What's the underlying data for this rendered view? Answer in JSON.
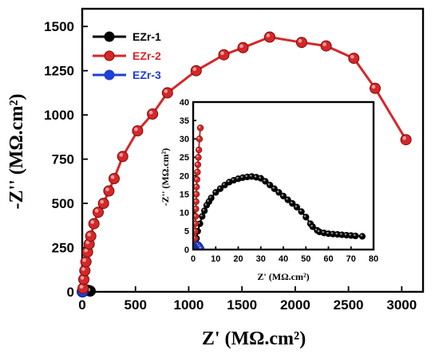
{
  "chart_data": [
    {
      "panel": "main",
      "type": "scatter",
      "xlabel": "Z' (MΩ.cm²)",
      "ylabel": "-Z'' (MΩ.cm²)",
      "xlim": [
        0,
        3200
      ],
      "ylim": [
        0,
        1600
      ],
      "xticks": [
        0,
        500,
        1000,
        1500,
        2000,
        2500,
        3000
      ],
      "yticks": [
        0,
        250,
        500,
        750,
        1000,
        1250,
        1500
      ],
      "legend_position": "top-left",
      "series": [
        {
          "name": "EZr-1",
          "color": "#000000",
          "x": [
            5,
            20,
            40,
            60,
            75
          ],
          "y": [
            5,
            8,
            10,
            7,
            4
          ]
        },
        {
          "name": "EZr-2",
          "color": "#d62728",
          "x": [
            8,
            15,
            25,
            35,
            50,
            65,
            80,
            110,
            150,
            200,
            250,
            300,
            380,
            520,
            660,
            800,
            1070,
            1330,
            1510,
            1760,
            2060,
            2290,
            2550,
            2750,
            3040
          ],
          "y": [
            20,
            70,
            120,
            170,
            225,
            270,
            315,
            385,
            450,
            500,
            570,
            640,
            765,
            910,
            1005,
            1125,
            1250,
            1340,
            1380,
            1440,
            1410,
            1390,
            1320,
            1150,
            860
          ]
        },
        {
          "name": "EZr-3",
          "color": "#1f3fd6",
          "x": [
            1,
            2,
            3,
            4,
            5
          ],
          "y": [
            0,
            1,
            2,
            1,
            0
          ]
        }
      ]
    },
    {
      "panel": "inset",
      "type": "scatter",
      "xlabel": "Z' (MΩ.cm²)",
      "ylabel": "-Z'' (MΩ.cm²)",
      "xlim": [
        0,
        80
      ],
      "ylim": [
        0,
        40
      ],
      "xticks": [
        0,
        10,
        20,
        30,
        40,
        50,
        60,
        70,
        80
      ],
      "yticks": [
        0,
        5,
        10,
        15,
        20,
        25,
        30,
        35,
        40
      ],
      "series": [
        {
          "name": "EZr-1",
          "color": "#000000",
          "x": [
            1,
            1.5,
            2,
            3,
            4,
            5,
            6,
            7,
            8,
            10,
            12,
            14,
            16,
            18,
            20,
            22,
            24,
            26,
            28,
            30,
            32,
            34,
            36,
            38,
            40,
            42,
            44,
            46,
            48,
            50,
            52,
            53,
            55,
            56,
            58,
            60,
            62,
            64,
            66,
            68,
            70,
            72,
            75
          ],
          "y": [
            1.5,
            3,
            5,
            7,
            9,
            10.5,
            12,
            13,
            14,
            15.5,
            16.5,
            17.5,
            18.3,
            18.8,
            19.2,
            19.5,
            19.7,
            19.8,
            19.6,
            19.3,
            18.5,
            17.5,
            16.5,
            15.5,
            14.5,
            13.5,
            12.5,
            11.5,
            10.3,
            8.8,
            7,
            6.2,
            5.2,
            4.8,
            4.5,
            4.3,
            4.2,
            4.1,
            4,
            3.9,
            3.8,
            3.7,
            3.6
          ]
        },
        {
          "name": "EZr-2",
          "color": "#d62728",
          "x": [
            0.6,
            0.7,
            0.8,
            0.9,
            1.0,
            1.1,
            1.2,
            1.3,
            1.4,
            1.5,
            1.7,
            1.9,
            2.1,
            2.3,
            2.5,
            2.8,
            3.2
          ],
          "y": [
            0.5,
            1.5,
            3,
            5,
            7,
            9,
            11,
            13,
            15,
            17,
            19,
            21,
            23,
            25,
            27,
            30,
            33
          ]
        },
        {
          "name": "EZr-3",
          "color": "#1f3fd6",
          "x": [
            0.5,
            1,
            1.5,
            2,
            2.5,
            3,
            3.5
          ],
          "y": [
            0.3,
            0.8,
            1.2,
            1.4,
            1.2,
            0.8,
            0.3
          ]
        }
      ]
    }
  ]
}
